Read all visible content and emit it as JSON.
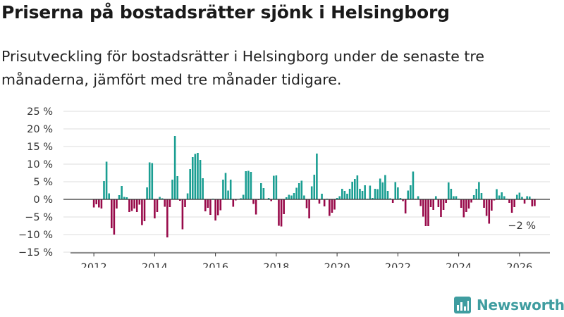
{
  "header": {
    "title": "Priserna på bostadsrätter sjönk i Helsingborg",
    "subtitle": "Prisutveckling för bostadsrätter i Helsingborg under de senaste tre månaderna, jämfört med tre månader tidigare."
  },
  "brand": {
    "name": "Newsworthy",
    "color": "#3f9da0"
  },
  "colors": {
    "positive": "#1a9e92",
    "negative": "#980a4a",
    "grid": "#dddddd",
    "axis": "#333333"
  },
  "chart_data": {
    "type": "bar",
    "title": "Priserna på bostadsrätter sjönk i Helsingborg",
    "subtitle": "Prisutveckling för bostadsrätter i Helsingborg under de senaste tre månaderna, jämfört med tre månader tidigare.",
    "xlabel": "",
    "ylabel": "",
    "unit": "%",
    "ylim": [
      -15,
      25
    ],
    "yticks": [
      25,
      20,
      15,
      10,
      5,
      0,
      -5,
      -10,
      -15
    ],
    "ytick_labels": [
      "25 %",
      "20 %",
      "15 %",
      "10 %",
      "5 %",
      "0 %",
      "−5 %",
      "−10 %",
      "−15 %"
    ],
    "xlim": [
      2011.0,
      2027.0
    ],
    "xticks": [
      2012,
      2014,
      2016,
      2018,
      2020,
      2022,
      2024,
      2026
    ],
    "xtick_labels": [
      "2012",
      "2014",
      "2016",
      "2018",
      "2020",
      "2022",
      "2024",
      "2026"
    ],
    "x_start": 2012.0,
    "x_step_months": 1,
    "grid": true,
    "annotation": {
      "text": "−2 %",
      "x": 2026.17,
      "y": -2
    },
    "values": [
      -2.3,
      -1.4,
      -2.3,
      -2.6,
      5.2,
      10.7,
      1.7,
      -8.2,
      -10.0,
      -2.6,
      1.2,
      3.8,
      0.7,
      0.6,
      -3.6,
      -3.3,
      -2.6,
      -3.6,
      -1.5,
      -7.3,
      -6.2,
      3.4,
      10.5,
      10.3,
      -5.4,
      -3.6,
      0.7,
      0.3,
      -2.1,
      -10.8,
      -2.2,
      5.6,
      18.0,
      6.6,
      -0.4,
      -8.5,
      -2.2,
      1.7,
      8.6,
      12.0,
      12.9,
      13.2,
      11.2,
      6.0,
      -3.4,
      -2.4,
      -4.4,
      0.2,
      -6.0,
      -4.5,
      -3.1,
      5.6,
      7.5,
      2.5,
      5.6,
      -2.1,
      -0.3,
      0.1,
      0.3,
      1.3,
      8.0,
      8.1,
      7.8,
      -1.3,
      -4.3,
      -0.2,
      4.6,
      3.2,
      0.1,
      0.4,
      -0.5,
      6.7,
      6.8,
      -7.5,
      -7.7,
      -4.2,
      0.6,
      1.3,
      1.1,
      1.8,
      3.3,
      4.6,
      5.3,
      1.1,
      -2.5,
      -5.4,
      3.7,
      7.0,
      13.0,
      -1.2,
      1.6,
      -2.0,
      0.2,
      -4.7,
      -3.8,
      -2.9,
      0.4,
      0.9,
      3.0,
      2.4,
      1.6,
      3.0,
      5.0,
      5.8,
      6.8,
      3.0,
      2.4,
      4.0,
      0.2,
      3.9,
      0.4,
      3.0,
      2.9,
      5.9,
      4.8,
      6.9,
      2.4,
      0.3,
      -1.0,
      4.9,
      3.4,
      0.4,
      -0.5,
      -4.0,
      2.5,
      4.0,
      7.9,
      0.2,
      0.9,
      -1.9,
      -4.9,
      -7.6,
      -7.6,
      -2.2,
      -3.0,
      0.9,
      -2.2,
      -5.0,
      -3.0,
      -1.0,
      4.8,
      3.0,
      0.9,
      0.9,
      0.2,
      -2.4,
      -5.1,
      -3.6,
      -2.6,
      -0.9,
      1.2,
      3.0,
      4.9,
      1.8,
      -2.4,
      -4.7,
      -6.9,
      -3.2,
      -0.3,
      2.9,
      1.1,
      2.0,
      0.9,
      0.2,
      -1.0,
      -3.8,
      -2.2,
      1.3,
      1.9,
      0.7,
      -1.2,
      0.9,
      0.8,
      -2.0,
      -1.9
    ]
  }
}
